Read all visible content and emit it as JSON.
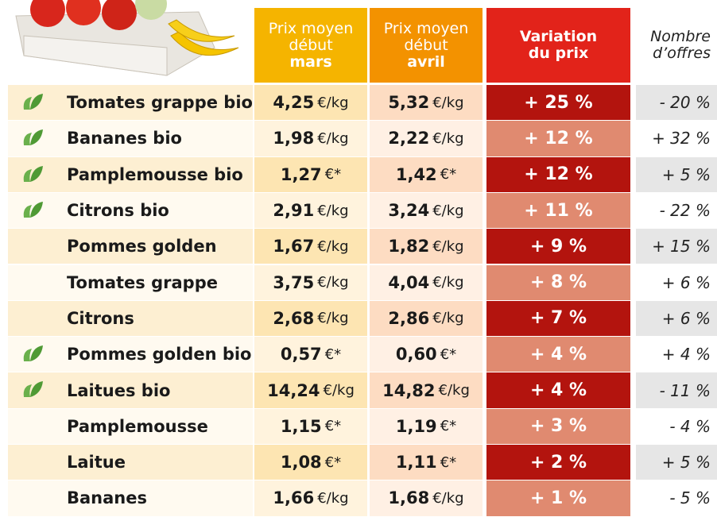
{
  "table": {
    "headers": {
      "march": [
        "Prix moyen",
        "début",
        "mars"
      ],
      "april": [
        "Prix moyen",
        "début",
        "avril"
      ],
      "variation": [
        "Variation",
        "du prix"
      ],
      "offers": [
        "Nombre",
        "d’offres"
      ]
    },
    "rows": [
      {
        "product": "Tomates grappe bio",
        "organic": true,
        "march": {
          "price": "4,25",
          "unit": "€/kg"
        },
        "april": {
          "price": "5,32",
          "unit": "€/kg"
        },
        "variation": "+ 25 %",
        "offers": "- 20 %"
      },
      {
        "product": "Bananes bio",
        "organic": true,
        "march": {
          "price": "1,98",
          "unit": "€/kg"
        },
        "april": {
          "price": "2,22",
          "unit": "€/kg"
        },
        "variation": "+ 12 %",
        "offers": "+ 32 %"
      },
      {
        "product": "Pamplemousse bio",
        "organic": true,
        "march": {
          "price": "1,27",
          "unit": "€*"
        },
        "april": {
          "price": "1,42",
          "unit": "€*"
        },
        "variation": "+ 12 %",
        "offers": "+ 5 %"
      },
      {
        "product": "Citrons bio",
        "organic": true,
        "march": {
          "price": "2,91",
          "unit": "€/kg"
        },
        "april": {
          "price": "3,24",
          "unit": "€/kg"
        },
        "variation": "+ 11 %",
        "offers": "- 22 %"
      },
      {
        "product": "Pommes golden",
        "organic": false,
        "march": {
          "price": "1,67",
          "unit": "€/kg"
        },
        "april": {
          "price": "1,82",
          "unit": "€/kg"
        },
        "variation": "+ 9 %",
        "offers": "+ 15 %"
      },
      {
        "product": "Tomates grappe",
        "organic": false,
        "march": {
          "price": "3,75",
          "unit": "€/kg"
        },
        "april": {
          "price": "4,04",
          "unit": "€/kg"
        },
        "variation": "+ 8 %",
        "offers": "+ 6 %"
      },
      {
        "product": "Citrons",
        "organic": false,
        "march": {
          "price": "2,68",
          "unit": "€/kg"
        },
        "april": {
          "price": "2,86",
          "unit": "€/kg"
        },
        "variation": "+ 7 %",
        "offers": "+ 6 %"
      },
      {
        "product": "Pommes golden bio",
        "organic": true,
        "march": {
          "price": "0,57",
          "unit": "€*"
        },
        "april": {
          "price": "0,60",
          "unit": "€*"
        },
        "variation": "+ 4 %",
        "offers": "+ 4 %"
      },
      {
        "product": "Laitues bio",
        "organic": true,
        "march": {
          "price": "14,24",
          "unit": "€/kg"
        },
        "april": {
          "price": "14,82",
          "unit": "€/kg"
        },
        "variation": "+ 4 %",
        "offers": "- 11 %"
      },
      {
        "product": "Pamplemousse",
        "organic": false,
        "march": {
          "price": "1,15",
          "unit": "€*"
        },
        "april": {
          "price": "1,19",
          "unit": "€*"
        },
        "variation": "+ 3 %",
        "offers": "- 4 %"
      },
      {
        "product": "Laitue",
        "organic": false,
        "march": {
          "price": "1,08",
          "unit": "€*"
        },
        "april": {
          "price": "1,11",
          "unit": "€*"
        },
        "variation": "+ 2 %",
        "offers": "+ 5 %"
      },
      {
        "product": "Bananes",
        "organic": false,
        "march": {
          "price": "1,66",
          "unit": "€/kg"
        },
        "april": {
          "price": "1,68",
          "unit": "€/kg"
        },
        "variation": "+ 1 %",
        "offers": "- 5 %"
      }
    ]
  }
}
